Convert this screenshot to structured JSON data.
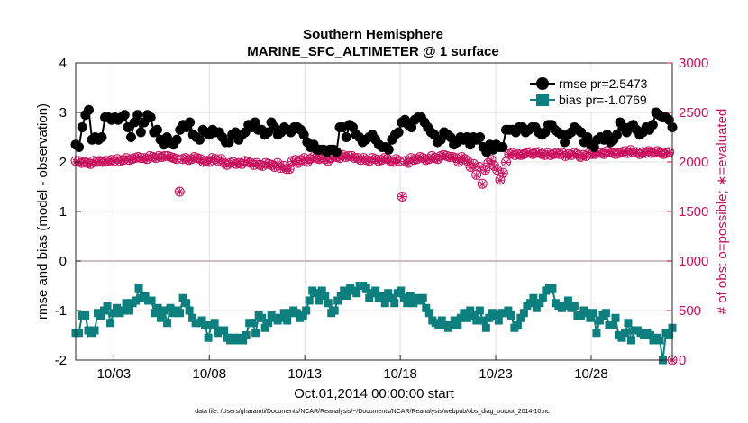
{
  "chart_data": {
    "type": "line",
    "title": "Southern Hemisphere",
    "subtitle": "MARINE_SFC_ALTIMETER @ 1 surface",
    "xlabel": "Oct.01,2014 00:00:00 start",
    "ylabel": "rmse and bias (model - observation)",
    "ylabel_right": "# of obs: o=possible; ∗=evaluated",
    "footnote": "data file: /Users/gharamti/Documents/NCAR/Reanalysis/~/Documents/NCAR/Reanalysis/webpub/obs_diag_output_2014-10.nc",
    "x_range_days": [
      1.0,
      32.25
    ],
    "ylim": [
      -2,
      4
    ],
    "ylim_right": [
      0,
      3000
    ],
    "x_ticks": [
      {
        "day": 3,
        "label": "10/03"
      },
      {
        "day": 8,
        "label": "10/08"
      },
      {
        "day": 13,
        "label": "10/13"
      },
      {
        "day": 18,
        "label": "10/18"
      },
      {
        "day": 23,
        "label": "10/23"
      },
      {
        "day": 28,
        "label": "10/28"
      }
    ],
    "y_ticks": [
      -2,
      -1,
      0,
      1,
      2,
      3,
      4
    ],
    "y_ticks_right": [
      0,
      500,
      1000,
      1500,
      2000,
      2500,
      3000
    ],
    "grid": true,
    "legend_position": "top-right",
    "colors": {
      "rmse": "#000000",
      "bias": "#0d7f7f",
      "count": "#c8105e",
      "zero_line": "#c4a9b5",
      "grid": "#e2e2e2"
    },
    "series": [
      {
        "name": "rmse pr=2.5473",
        "marker": "circle",
        "axis": "left",
        "values": [
          2.35,
          2.3,
          2.7,
          2.95,
          3.05,
          2.45,
          2.5,
          2.45,
          2.5,
          2.9,
          2.9,
          2.85,
          2.9,
          2.85,
          2.9,
          2.95,
          2.7,
          2.5,
          2.8,
          2.95,
          2.6,
          2.8,
          2.95,
          2.9,
          2.6,
          2.65,
          2.45,
          2.35,
          2.5,
          2.4,
          2.35,
          2.45,
          2.65,
          2.75,
          2.7,
          2.8,
          2.55,
          2.5,
          2.45,
          2.65,
          2.6,
          2.55,
          2.65,
          2.6,
          2.6,
          2.5,
          2.4,
          2.4,
          2.55,
          2.6,
          2.45,
          2.55,
          2.6,
          2.75,
          2.7,
          2.8,
          2.65,
          2.65,
          2.55,
          2.6,
          2.8,
          2.7,
          2.55,
          2.6,
          2.7,
          2.65,
          2.6,
          2.7,
          2.7,
          2.65,
          2.55,
          2.4,
          2.3,
          2.35,
          2.25,
          2.25,
          2.25,
          2.2,
          2.25,
          2.25,
          2.2,
          2.7,
          2.7,
          2.5,
          2.75,
          2.7,
          2.55,
          2.5,
          2.4,
          2.45,
          2.5,
          2.55,
          2.45,
          2.35,
          2.3,
          2.3,
          2.25,
          2.45,
          2.55,
          2.6,
          2.8,
          2.85,
          2.75,
          2.7,
          2.85,
          2.9,
          2.9,
          2.8,
          2.7,
          2.6,
          2.55,
          2.4,
          2.45,
          2.6,
          2.55,
          2.5,
          2.35,
          2.4,
          2.5,
          2.45,
          2.5,
          2.35,
          2.5,
          2.45,
          2.5,
          2.3,
          2.2,
          2.35,
          2.25,
          2.35,
          2.3,
          2.3,
          2.65,
          2.65,
          2.65,
          2.6,
          2.7,
          2.7,
          2.6,
          2.65,
          2.7,
          2.7,
          2.6,
          2.55,
          2.6,
          2.75,
          2.75,
          2.65,
          2.6,
          2.55,
          2.4,
          2.55,
          2.6,
          2.7,
          2.65,
          2.6,
          2.4,
          2.5,
          2.35,
          2.3,
          2.45,
          2.5,
          2.45,
          2.55,
          2.4,
          2.45,
          2.55,
          2.8,
          2.7,
          2.6,
          2.7,
          2.75,
          2.65,
          2.55,
          2.6,
          2.7,
          2.65,
          2.75,
          3.0,
          2.95,
          2.9,
          2.9,
          2.85,
          2.7
        ]
      },
      {
        "name": "bias pr=-1.0769",
        "marker": "square",
        "axis": "left",
        "values": [
          -1.45,
          -1.45,
          -1.1,
          -1.1,
          -1.4,
          -1.45,
          -1.4,
          -1.05,
          -1.1,
          -1.0,
          -0.9,
          -1.25,
          -1.05,
          -0.95,
          -1.05,
          -1.0,
          -0.85,
          -1.0,
          -0.85,
          -0.8,
          -0.55,
          -0.75,
          -0.7,
          -0.8,
          -0.8,
          -1.05,
          -0.95,
          -1.15,
          -1.0,
          -1.25,
          -0.95,
          -1.05,
          -1.0,
          -1.05,
          -0.75,
          -0.85,
          -1.0,
          -1.15,
          -1.25,
          -1.25,
          -1.2,
          -1.3,
          -1.55,
          -1.3,
          -1.25,
          -1.45,
          -1.4,
          -1.4,
          -1.55,
          -1.6,
          -1.55,
          -1.6,
          -1.55,
          -1.6,
          -1.5,
          -1.25,
          -1.25,
          -1.45,
          -1.1,
          -1.15,
          -1.35,
          -1.25,
          -1.1,
          -1.15,
          -1.2,
          -1.15,
          -1.05,
          -1.2,
          -1.05,
          -1.0,
          -1.05,
          -1.15,
          -1.1,
          -1.0,
          -0.8,
          -0.6,
          -0.65,
          -0.8,
          -0.6,
          -0.7,
          -0.85,
          -1.05,
          -1.0,
          -0.8,
          -0.7,
          -0.6,
          -0.7,
          -0.55,
          -0.6,
          -0.65,
          -0.5,
          -0.5,
          -0.55,
          -0.75,
          -0.65,
          -0.6,
          -0.75,
          -0.7,
          -0.85,
          -0.65,
          -0.75,
          -0.85,
          -0.65,
          -0.6,
          -0.75,
          -0.85,
          -0.7,
          -0.85,
          -0.75,
          -0.8,
          -0.75,
          -0.95,
          -1.05,
          -1.2,
          -1.25,
          -1.3,
          -1.2,
          -1.3,
          -1.35,
          -1.3,
          -1.2,
          -1.3,
          -1.15,
          -1.05,
          -1.15,
          -1.0,
          -1.1,
          -1.2,
          -1.0,
          -1.2,
          -1.35,
          -1.15,
          -1.05,
          -1.1,
          -1.2,
          -1.05,
          -1.05,
          -1.0,
          -1.1,
          -1.35,
          -1.3,
          -1.15,
          -1.05,
          -0.9,
          -0.85,
          -0.75,
          -0.95,
          -0.85,
          -0.75,
          -0.6,
          -0.55,
          -0.55,
          -0.85,
          -0.9,
          -0.95,
          -0.9,
          -0.8,
          -0.95,
          -0.9,
          -1.1,
          -1.1,
          -1.0,
          -1.05,
          -1.15,
          -1.05,
          -1.45,
          -1.2,
          -1.1,
          -1.05,
          -1.3,
          -1.3,
          -1.15,
          -1.5,
          -1.55,
          -1.45,
          -1.25,
          -1.6,
          -1.4,
          -1.4,
          -1.45,
          -1.5,
          -1.45,
          -1.5,
          -1.6,
          -1.55,
          -1.6,
          -2.0,
          -1.45,
          -1.5,
          -1.35
        ]
      },
      {
        "name": "possible",
        "marker": "open-circle",
        "axis": "right",
        "values": [
          2010,
          2010,
          1990,
          2000,
          1990,
          1980,
          2010,
          2000,
          2010,
          2000,
          2010,
          2010,
          2020,
          2010,
          2030,
          2010,
          2020,
          2040,
          2020,
          2030,
          2040,
          2050,
          2040,
          2040,
          2030,
          2060,
          2050,
          2040,
          2060,
          2050,
          2060,
          2060,
          2050,
          2040,
          2030,
          1700,
          2030,
          2040,
          2020,
          2030,
          2050,
          2040,
          2030,
          2000,
          2010,
          2000,
          2040,
          2030,
          2010,
          2030,
          1990,
          1970,
          1990,
          2000,
          1980,
          1990,
          1980,
          2010,
          2000,
          1990,
          1970,
          1990,
          1970,
          1960,
          1990,
          1980,
          1970,
          1950,
          1990,
          1940,
          1960,
          1930,
          1930,
          2010,
          2020,
          1990,
          2020,
          2040,
          2000,
          2030,
          2050,
          2040,
          2030,
          2040,
          2030,
          2010,
          2040,
          2060,
          2050,
          2040,
          2070,
          2050,
          2060,
          2060,
          2040,
          2040,
          2020,
          2040,
          2020,
          2010,
          2040,
          2030,
          2010,
          2020,
          2040,
          2030,
          2010,
          2000,
          2030,
          2010,
          1650,
          2010,
          1990,
          2040,
          2020,
          2030,
          2050,
          2040,
          2020,
          2030,
          2060,
          2040,
          2030,
          2060,
          2070,
          2060,
          2050,
          2050,
          2040,
          2000,
          2050,
          2030,
          2010,
          1950,
          1980,
          1870,
          1950,
          1780,
          1920,
          1990,
          2020,
          1960,
          1920,
          1820,
          1890,
          2000,
          2080,
          2090,
          2070,
          2080,
          2070,
          2080,
          2090,
          2100,
          2080,
          2090,
          2100,
          2080,
          2070,
          2090,
          2070,
          2080,
          2090,
          2080,
          2090,
          2060,
          2080,
          2070,
          2090,
          2080,
          2050,
          2070,
          2060,
          2090,
          2080,
          2080,
          2100,
          2090,
          2080,
          2110,
          2100,
          2090,
          2080,
          2090,
          2100,
          2110,
          2090,
          2120,
          2100,
          2100,
          2080,
          2100,
          2090,
          2110,
          2090,
          2100,
          2110,
          2090,
          2080,
          2090,
          2100,
          0
        ]
      },
      {
        "name": "evaluated",
        "marker": "asterisk",
        "axis": "right",
        "values": [
          2000,
          2000,
          1990,
          2000,
          1985,
          1975,
          2000,
          1995,
          2005,
          1995,
          2005,
          2005,
          2015,
          2005,
          2025,
          2005,
          2015,
          2035,
          2015,
          2025,
          2035,
          2045,
          2035,
          2035,
          2025,
          2055,
          2045,
          2035,
          2055,
          2045,
          2055,
          2055,
          2045,
          2035,
          2025,
          1700,
          2025,
          2035,
          2015,
          2025,
          2045,
          2035,
          2025,
          1995,
          2005,
          1995,
          2035,
          2025,
          2005,
          2025,
          1985,
          1965,
          1985,
          1995,
          1975,
          1985,
          1975,
          2005,
          1995,
          1985,
          1965,
          1985,
          1965,
          1955,
          1985,
          1975,
          1965,
          1945,
          1985,
          1935,
          1955,
          1925,
          1925,
          2005,
          2015,
          1985,
          2015,
          2035,
          1995,
          2025,
          2045,
          2035,
          2025,
          2035,
          2025,
          2005,
          2035,
          2055,
          2045,
          2035,
          2065,
          2045,
          2055,
          2055,
          2035,
          2035,
          2015,
          2035,
          2015,
          2005,
          2035,
          2025,
          2005,
          2015,
          2035,
          2025,
          2005,
          1995,
          2025,
          2005,
          1650,
          2005,
          1985,
          2035,
          2015,
          2025,
          2045,
          2035,
          2015,
          2025,
          2055,
          2035,
          2025,
          2055,
          2065,
          2055,
          2045,
          2045,
          2035,
          1995,
          2045,
          2025,
          2005,
          1945,
          1975,
          1865,
          1945,
          1775,
          1915,
          1985,
          2015,
          1955,
          1915,
          1815,
          1885,
          1995,
          2075,
          2085,
          2065,
          2075,
          2065,
          2075,
          2085,
          2095,
          2075,
          2085,
          2095,
          2075,
          2065,
          2085,
          2065,
          2075,
          2085,
          2075,
          2085,
          2055,
          2075,
          2065,
          2085,
          2075,
          2045,
          2065,
          2055,
          2085,
          2075,
          2075,
          2095,
          2085,
          2075,
          2105,
          2095,
          2085,
          2075,
          2085,
          2095,
          2105,
          2085,
          2115,
          2095,
          2095,
          2075,
          2095,
          2085,
          2105,
          2085,
          2095,
          2105,
          2085,
          2075,
          2085,
          2095,
          0
        ]
      }
    ]
  }
}
